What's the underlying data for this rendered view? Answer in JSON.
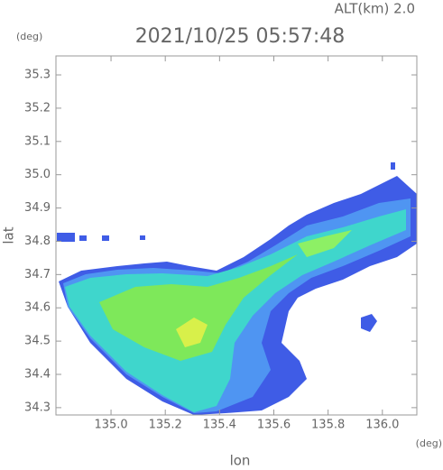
{
  "chart_data": {
    "type": "map",
    "title": "2021/10/25 05:57:48",
    "altitude_label": "ALT(km) 2.0",
    "y_unit": "(deg)",
    "x_unit": "(deg)",
    "y_label": "lat",
    "x_label": "lon",
    "xlim": [
      134.797,
      136.127
    ],
    "ylim": [
      34.278,
      35.357
    ],
    "xticks": [
      {
        "value": 135,
        "label": "135.0"
      },
      135.2,
      135.4,
      135.6,
      135.8,
      {
        "value": 136,
        "label": "136.0"
      }
    ],
    "yticks": [
      34.3,
      34.4,
      34.5,
      34.6,
      34.7,
      34.8,
      34.9,
      {
        "value": 35,
        "label": "35.0"
      },
      35.1,
      35.2,
      35.3
    ]
  }
}
